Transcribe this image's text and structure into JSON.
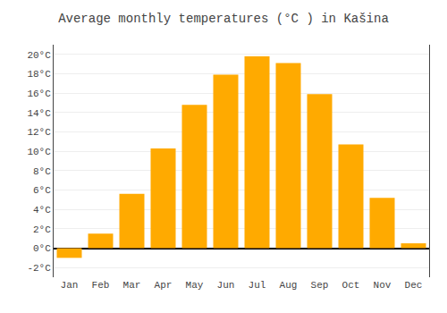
{
  "chart_data": {
    "type": "bar",
    "title": "Average monthly temperatures (°C ) in Kašina",
    "categories": [
      "Jan",
      "Feb",
      "Mar",
      "Apr",
      "May",
      "Jun",
      "Jul",
      "Aug",
      "Sep",
      "Oct",
      "Nov",
      "Dec"
    ],
    "values": [
      -1.0,
      1.5,
      5.6,
      10.3,
      14.8,
      17.9,
      19.8,
      19.1,
      15.9,
      10.7,
      5.2,
      0.5
    ],
    "color": "#FFAA00",
    "ylim": [
      -3,
      21
    ],
    "yticks": [
      {
        "value": -2,
        "label": "-2°C"
      },
      {
        "value": 0,
        "label": "0°C"
      },
      {
        "value": 2,
        "label": "2°C"
      },
      {
        "value": 4,
        "label": "4°C"
      },
      {
        "value": 6,
        "label": "6°C"
      },
      {
        "value": 8,
        "label": "8°C"
      },
      {
        "value": 10,
        "label": "10°C"
      },
      {
        "value": 12,
        "label": "12°C"
      },
      {
        "value": 14,
        "label": "14°C"
      },
      {
        "value": 16,
        "label": "16°C"
      },
      {
        "value": 18,
        "label": "18°C"
      },
      {
        "value": 20,
        "label": "20°C"
      }
    ],
    "grid": true
  }
}
